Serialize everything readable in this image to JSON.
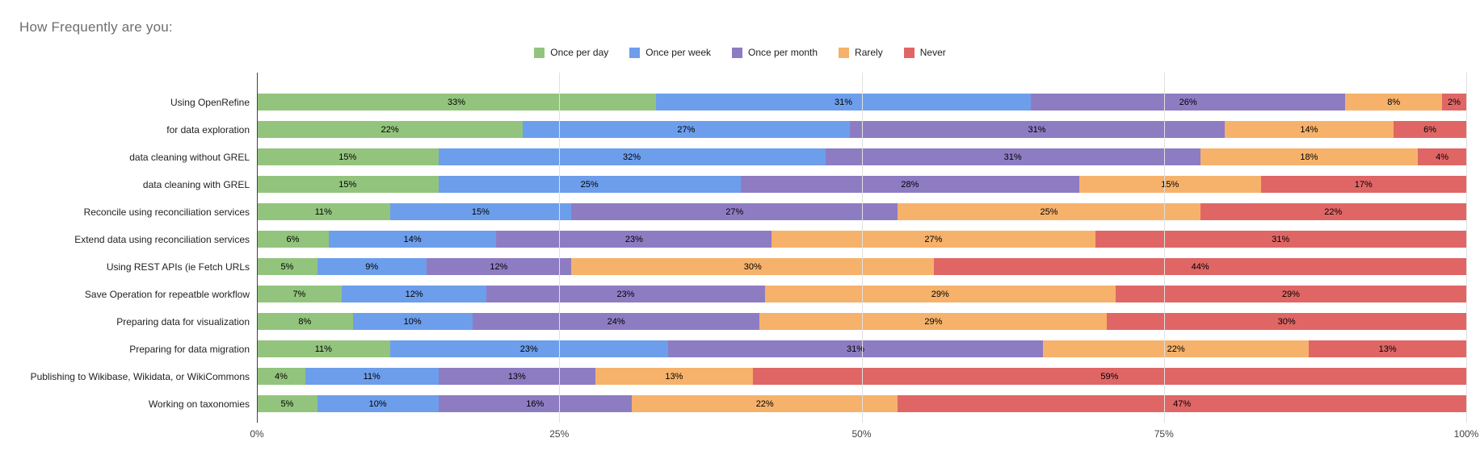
{
  "chart_data": {
    "type": "bar",
    "stacked": true,
    "orientation": "horizontal",
    "title": "How Frequently are you:",
    "legend_position": "top",
    "grid": true,
    "value_suffix": "%",
    "xlim": [
      0,
      100
    ],
    "x_ticks": [
      "0%",
      "25%",
      "50%",
      "75%",
      "100%"
    ],
    "categories": [
      "Using OpenRefine",
      "for data exploration",
      "data cleaning without GREL",
      "data cleaning with GREL",
      "Reconcile using reconciliation services",
      "Extend data using reconciliation services",
      "Using REST APIs (ie Fetch URLs",
      "Save Operation for repeatble workflow",
      "Preparing data for visualization",
      "Preparing for data migration",
      "Publishing to Wikibase, Wikidata, or WikiCommons",
      "Working on taxonomies"
    ],
    "series": [
      {
        "name": "Once per day",
        "color": "#93c47d",
        "values": [
          33,
          22,
          15,
          15,
          11,
          6,
          5,
          7,
          8,
          11,
          4,
          5
        ]
      },
      {
        "name": "Once per week",
        "color": "#6d9eeb",
        "values": [
          31,
          27,
          32,
          25,
          15,
          14,
          9,
          12,
          10,
          23,
          11,
          10
        ]
      },
      {
        "name": "Once per month",
        "color": "#8e7cc3",
        "values": [
          26,
          31,
          31,
          28,
          27,
          23,
          12,
          23,
          24,
          31,
          13,
          16
        ]
      },
      {
        "name": "Rarely",
        "color": "#f6b26b",
        "values": [
          8,
          14,
          18,
          15,
          25,
          27,
          30,
          29,
          29,
          22,
          13,
          22
        ]
      },
      {
        "name": "Never",
        "color": "#e06666",
        "values": [
          2,
          6,
          4,
          17,
          22,
          31,
          44,
          29,
          30,
          13,
          59,
          47
        ]
      }
    ]
  }
}
